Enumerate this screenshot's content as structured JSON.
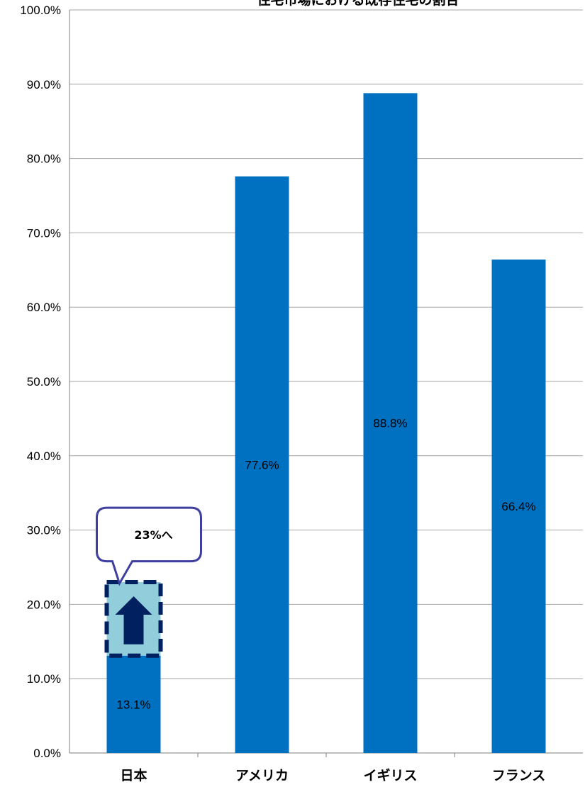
{
  "chart_data": {
    "type": "bar",
    "title": "住宅市場における既存住宅の割合",
    "categories": [
      "日本",
      "アメリカ",
      "イギリス",
      "フランス"
    ],
    "values": [
      13.1,
      77.6,
      88.8,
      66.4
    ],
    "value_labels": [
      "13.1%",
      "77.6%",
      "88.8%",
      "66.4%"
    ],
    "ylim": [
      0,
      100
    ],
    "yticks": [
      0,
      10,
      20,
      30,
      40,
      50,
      60,
      70,
      80,
      90,
      100
    ],
    "ytick_labels": [
      "0.0%",
      "10.0%",
      "20.0%",
      "30.0%",
      "40.0%",
      "50.0%",
      "60.0%",
      "70.0%",
      "80.0%",
      "90.0%",
      "100.0%"
    ],
    "xlabel": "",
    "ylabel": "",
    "grid": true,
    "legend": "none",
    "bar_color": "#0070C0",
    "annotation": {
      "text": "23%へ",
      "category": "日本",
      "from_value": 13.1,
      "to_value": 23
    }
  }
}
